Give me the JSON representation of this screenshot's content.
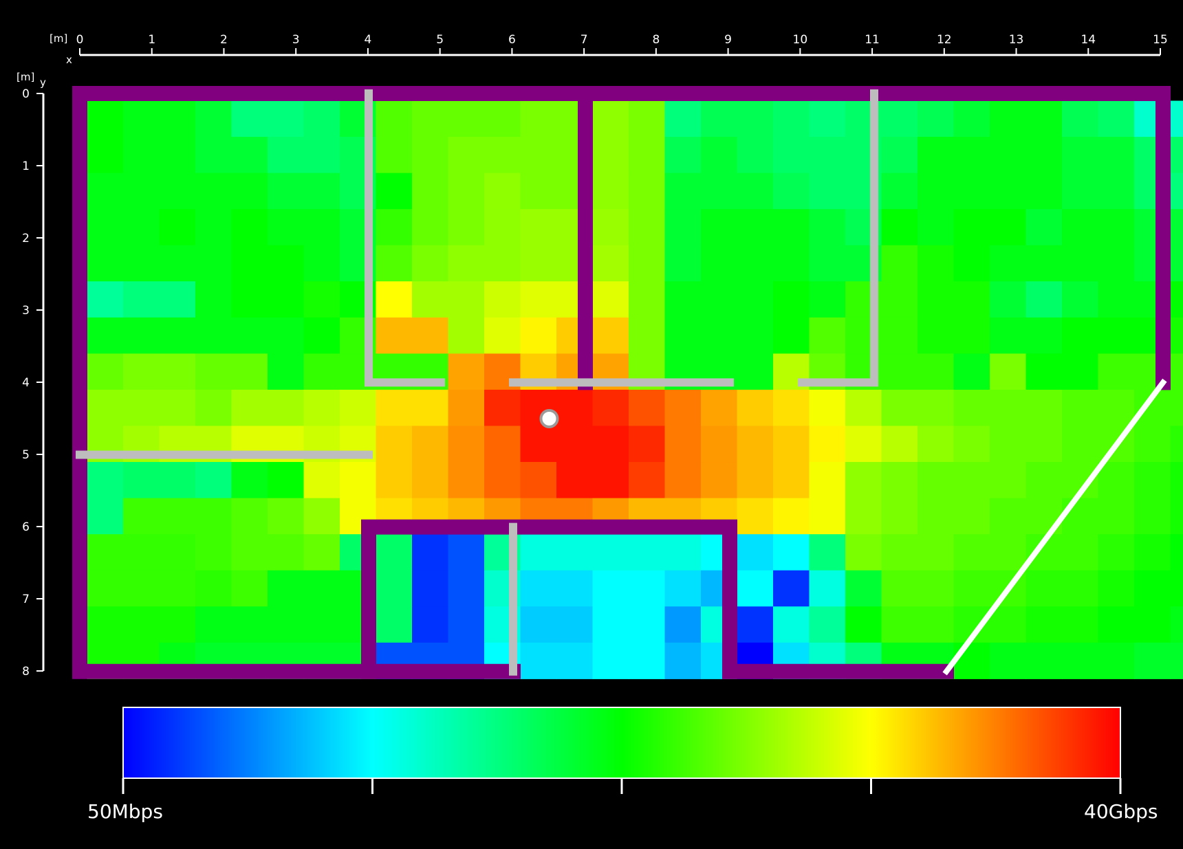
{
  "chart_data": {
    "type": "heatmap",
    "x_axis": {
      "unit": "[m]",
      "name": "x",
      "range": [
        0,
        15
      ],
      "ticks": [
        "0",
        "1",
        "2",
        "3",
        "4",
        "5",
        "6",
        "7",
        "8",
        "9",
        "10",
        "11",
        "12",
        "13",
        "14",
        "15"
      ]
    },
    "y_axis": {
      "unit": "[m]",
      "name": "y",
      "range": [
        0,
        8
      ],
      "ticks": [
        "0",
        "1",
        "2",
        "3",
        "4",
        "5",
        "6",
        "7",
        "8"
      ]
    },
    "cell_size_m": 0.5,
    "grid_origin_m": [
      0.1,
      0.1
    ],
    "value_scale": "0 = 50Mbps (blue) ... 1 = 40Gbps (red)",
    "colorbar": {
      "min_label": "50Mbps",
      "max_label": "40Gbps",
      "colors": [
        "#0000ff",
        "#00ffff",
        "#00ff00",
        "#ffff00",
        "#ff0000"
      ]
    },
    "grid": [
      "666677777666666",
      "666667777777666",
      "555556777777777",
      "555556777777777",
      "667666777777777",
      "665666777777666",
      "667666777777777",
      "777777777777766",
      "677767777777667",
      "675555577777777",
      "667666778888885",
      "777766778888887",
      "777777778888887",
      "777777779999887",
      "888777889999888",
      "777777888777777",
      "888888888888888",
      "888888888888888",
      "999999999999999",
      "999999999999999"
    ],
    "values": [
      [
        0.5,
        0.48,
        0.48,
        0.45,
        0.38,
        0.38,
        0.4,
        0.45,
        0.58,
        0.6,
        0.6,
        0.6,
        0.62,
        0.62,
        0.64,
        0.62,
        0.38,
        0.42,
        0.42,
        0.4,
        0.38,
        0.4,
        0.4,
        0.42,
        0.45,
        0.48,
        0.48,
        0.42,
        0.4,
        0.3,
        0.3,
        0.35
      ],
      [
        0.5,
        0.48,
        0.48,
        0.45,
        0.45,
        0.4,
        0.4,
        0.42,
        0.58,
        0.6,
        0.62,
        0.62,
        0.62,
        0.62,
        0.64,
        0.62,
        0.42,
        0.45,
        0.42,
        0.4,
        0.4,
        0.4,
        0.42,
        0.48,
        0.48,
        0.48,
        0.48,
        0.45,
        0.45,
        0.4,
        0.4,
        0.38
      ],
      [
        0.48,
        0.48,
        0.48,
        0.48,
        0.48,
        0.45,
        0.45,
        0.42,
        0.5,
        0.6,
        0.62,
        0.64,
        0.62,
        0.62,
        0.64,
        0.62,
        0.45,
        0.45,
        0.45,
        0.42,
        0.4,
        0.4,
        0.45,
        0.48,
        0.48,
        0.48,
        0.48,
        0.45,
        0.45,
        0.4,
        0.38,
        0.45
      ],
      [
        0.48,
        0.48,
        0.5,
        0.48,
        0.5,
        0.48,
        0.48,
        0.45,
        0.55,
        0.6,
        0.62,
        0.64,
        0.65,
        0.65,
        0.65,
        0.62,
        0.45,
        0.48,
        0.48,
        0.48,
        0.45,
        0.42,
        0.5,
        0.48,
        0.5,
        0.5,
        0.45,
        0.48,
        0.48,
        0.45,
        0.45,
        0.45
      ],
      [
        0.48,
        0.48,
        0.48,
        0.48,
        0.5,
        0.5,
        0.48,
        0.45,
        0.58,
        0.62,
        0.64,
        0.64,
        0.65,
        0.65,
        0.66,
        0.62,
        0.45,
        0.48,
        0.48,
        0.48,
        0.45,
        0.45,
        0.55,
        0.52,
        0.5,
        0.48,
        0.48,
        0.48,
        0.48,
        0.45,
        0.45,
        0.45
      ],
      [
        0.35,
        0.38,
        0.38,
        0.48,
        0.5,
        0.5,
        0.52,
        0.5,
        0.75,
        0.66,
        0.66,
        0.7,
        0.72,
        0.72,
        0.72,
        0.62,
        0.48,
        0.48,
        0.48,
        0.5,
        0.48,
        0.55,
        0.55,
        0.52,
        0.52,
        0.45,
        0.4,
        0.45,
        0.48,
        0.48,
        0.5,
        0.2
      ],
      [
        0.48,
        0.48,
        0.48,
        0.48,
        0.48,
        0.48,
        0.5,
        0.55,
        0.82,
        0.82,
        0.66,
        0.72,
        0.76,
        0.8,
        0.8,
        0.62,
        0.48,
        0.48,
        0.48,
        0.5,
        0.58,
        0.55,
        0.55,
        0.52,
        0.52,
        0.48,
        0.48,
        0.5,
        0.5,
        0.5,
        0.52,
        0.5
      ],
      [
        0.6,
        0.62,
        0.62,
        0.6,
        0.6,
        0.48,
        0.55,
        0.55,
        0.55,
        0.55,
        0.84,
        0.88,
        0.8,
        0.84,
        0.84,
        0.62,
        0.48,
        0.48,
        0.48,
        0.68,
        0.6,
        0.55,
        0.55,
        0.55,
        0.48,
        0.62,
        0.5,
        0.5,
        0.56,
        0.56,
        0.56,
        0.55
      ],
      [
        0.64,
        0.64,
        0.64,
        0.62,
        0.66,
        0.66,
        0.68,
        0.7,
        0.78,
        0.78,
        0.85,
        0.96,
        0.98,
        0.98,
        0.96,
        0.92,
        0.88,
        0.84,
        0.8,
        0.78,
        0.74,
        0.68,
        0.62,
        0.62,
        0.6,
        0.6,
        0.6,
        0.58,
        0.58,
        0.56,
        0.56,
        0.55
      ],
      [
        0.64,
        0.66,
        0.68,
        0.68,
        0.72,
        0.72,
        0.7,
        0.72,
        0.8,
        0.82,
        0.86,
        0.9,
        0.98,
        0.98,
        0.98,
        0.96,
        0.88,
        0.85,
        0.82,
        0.8,
        0.76,
        0.72,
        0.68,
        0.64,
        0.62,
        0.6,
        0.6,
        0.58,
        0.58,
        0.56,
        0.54,
        0.5
      ],
      [
        0.38,
        0.4,
        0.4,
        0.38,
        0.48,
        0.5,
        0.72,
        0.74,
        0.8,
        0.82,
        0.86,
        0.9,
        0.92,
        0.98,
        0.98,
        0.94,
        0.88,
        0.85,
        0.82,
        0.8,
        0.74,
        0.64,
        0.62,
        0.6,
        0.6,
        0.6,
        0.58,
        0.58,
        0.56,
        0.54,
        0.52,
        0.5
      ],
      [
        0.38,
        0.56,
        0.56,
        0.56,
        0.58,
        0.6,
        0.64,
        0.74,
        0.78,
        0.8,
        0.82,
        0.85,
        0.88,
        0.88,
        0.85,
        0.82,
        0.82,
        0.8,
        0.78,
        0.76,
        0.74,
        0.64,
        0.62,
        0.6,
        0.6,
        0.58,
        0.58,
        0.56,
        0.56,
        0.54,
        0.52,
        0.5
      ],
      [
        0.55,
        0.55,
        0.55,
        0.56,
        0.58,
        0.58,
        0.6,
        0.4,
        0.4,
        0.05,
        0.08,
        0.35,
        0.28,
        0.28,
        0.28,
        0.28,
        0.28,
        0.25,
        0.22,
        0.25,
        0.38,
        0.62,
        0.6,
        0.6,
        0.58,
        0.58,
        0.56,
        0.56,
        0.54,
        0.52,
        0.5,
        0.5
      ],
      [
        0.55,
        0.55,
        0.55,
        0.54,
        0.56,
        0.48,
        0.48,
        0.48,
        0.4,
        0.05,
        0.08,
        0.3,
        0.22,
        0.22,
        0.25,
        0.25,
        0.22,
        0.18,
        0.25,
        0.05,
        0.28,
        0.45,
        0.58,
        0.58,
        0.56,
        0.56,
        0.54,
        0.54,
        0.52,
        0.5,
        0.5,
        0.5
      ],
      [
        0.52,
        0.52,
        0.52,
        0.48,
        0.48,
        0.48,
        0.48,
        0.48,
        0.4,
        0.05,
        0.08,
        0.28,
        0.2,
        0.2,
        0.25,
        0.25,
        0.15,
        0.28,
        0.05,
        0.28,
        0.35,
        0.5,
        0.56,
        0.56,
        0.54,
        0.54,
        0.52,
        0.52,
        0.5,
        0.5,
        0.48,
        0.48
      ],
      [
        0.52,
        0.52,
        0.48,
        0.46,
        0.46,
        0.46,
        0.46,
        0.46,
        0.08,
        0.08,
        0.08,
        0.25,
        0.22,
        0.22,
        0.25,
        0.25,
        0.18,
        0.22,
        0.0,
        0.22,
        0.3,
        0.38,
        0.48,
        0.48,
        0.5,
        0.48,
        0.48,
        0.48,
        0.48,
        0.46,
        0.46,
        0.46
      ]
    ],
    "walls_m": [
      {
        "type": "outer",
        "points": [
          [
            0,
            0
          ],
          [
            15,
            0
          ],
          [
            15,
            4
          ]
        ]
      },
      {
        "type": "outer",
        "points": [
          [
            0,
            0
          ],
          [
            0,
            8
          ],
          [
            6,
            8
          ]
        ]
      },
      {
        "type": "outer",
        "points": [
          [
            9,
            8
          ],
          [
            12,
            8
          ]
        ]
      },
      {
        "type": "outer",
        "points": [
          [
            7,
            0
          ],
          [
            7,
            4
          ]
        ]
      },
      {
        "type": "outer",
        "points": [
          [
            4,
            8
          ],
          [
            4,
            6
          ],
          [
            9,
            6
          ],
          [
            9,
            8
          ]
        ]
      },
      {
        "type": "partition",
        "points": [
          [
            4,
            0
          ],
          [
            4,
            4
          ],
          [
            5,
            4
          ]
        ]
      },
      {
        "type": "partition",
        "points": [
          [
            6,
            4
          ],
          [
            9,
            4
          ]
        ]
      },
      {
        "type": "partition",
        "points": [
          [
            10,
            4
          ],
          [
            11,
            4
          ],
          [
            11,
            0
          ]
        ]
      },
      {
        "type": "partition",
        "points": [
          [
            0,
            5
          ],
          [
            4,
            5
          ]
        ]
      },
      {
        "type": "partition",
        "points": [
          [
            6,
            6
          ],
          [
            6,
            8
          ]
        ]
      },
      {
        "type": "window",
        "points": [
          [
            12,
            8
          ],
          [
            15,
            4
          ]
        ]
      }
    ],
    "access_point_m": [
      6.5,
      4.5
    ]
  }
}
